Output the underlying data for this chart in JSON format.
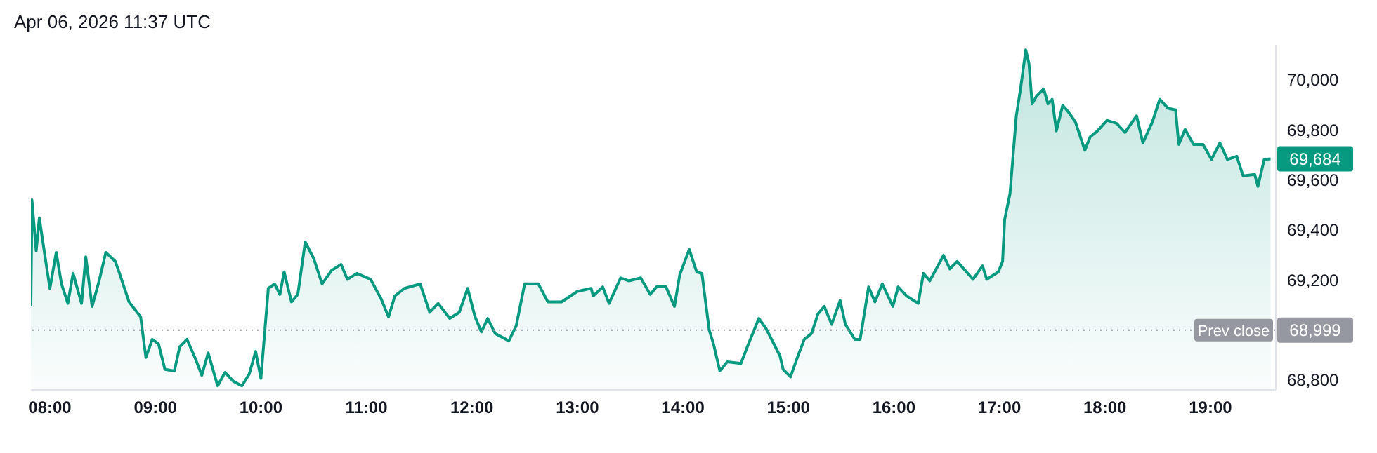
{
  "chart_data": {
    "type": "area",
    "annotations": [
      "Apr 06, 2026 11:37 UTC",
      {
        "text": "69,684",
        "x": 19.57,
        "y": 69684
      },
      {
        "text": "68,999",
        "x": 19.57,
        "y": 68999
      }
    ],
    "x": [
      7.82,
      7.83,
      7.87,
      7.9,
      7.95,
      8.0,
      8.06,
      8.11,
      8.17,
      8.22,
      8.3,
      8.34,
      8.4,
      8.47,
      8.53,
      8.62,
      8.66,
      8.75,
      8.86,
      8.91,
      8.97,
      9.03,
      9.09,
      9.18,
      9.23,
      9.3,
      9.38,
      9.44,
      9.5,
      9.59,
      9.66,
      9.74,
      9.82,
      9.89,
      9.95,
      10.0,
      10.07,
      10.13,
      10.18,
      10.22,
      10.29,
      10.35,
      10.42,
      10.5,
      10.58,
      10.67,
      10.76,
      10.82,
      10.91,
      11.04,
      11.14,
      11.21,
      11.27,
      11.36,
      11.51,
      11.6,
      11.68,
      11.79,
      11.88,
      11.96,
      12.03,
      12.09,
      12.15,
      12.22,
      12.35,
      12.42,
      12.5,
      12.63,
      12.72,
      12.85,
      13.0,
      13.13,
      13.15,
      13.24,
      13.3,
      13.41,
      13.49,
      13.6,
      13.69,
      13.75,
      13.84,
      13.92,
      13.97,
      14.06,
      14.13,
      14.18,
      14.25,
      14.29,
      14.35,
      14.42,
      14.55,
      14.61,
      14.72,
      14.79,
      14.92,
      14.95,
      15.02,
      15.08,
      15.15,
      15.22,
      15.28,
      15.34,
      15.41,
      15.49,
      15.54,
      15.63,
      15.68,
      15.76,
      15.82,
      15.89,
      15.99,
      16.04,
      16.12,
      16.23,
      16.28,
      16.34,
      16.47,
      16.53,
      16.6,
      16.75,
      16.84,
      16.88,
      16.99,
      17.03,
      17.05,
      17.1,
      17.16,
      17.2,
      17.25,
      17.28,
      17.31,
      17.35,
      17.42,
      17.46,
      17.5,
      17.54,
      17.6,
      17.65,
      17.72,
      17.81,
      17.86,
      17.93,
      18.02,
      18.11,
      18.19,
      18.3,
      18.36,
      18.45,
      18.52,
      18.6,
      18.67,
      18.7,
      18.76,
      18.84,
      18.93,
      19.01,
      19.09,
      19.16,
      19.25,
      19.31,
      19.42,
      19.45,
      19.51,
      19.57
    ],
    "series": [
      {
        "color": "#089981",
        "values": [
          69094,
          69520,
          69316,
          69448,
          69304,
          69166,
          69310,
          69184,
          69106,
          69226,
          69106,
          69292,
          69094,
          69202,
          69310,
          69274,
          69226,
          69112,
          69052,
          68890,
          68962,
          68944,
          68842,
          68836,
          68932,
          68962,
          68884,
          68818,
          68908,
          68776,
          68830,
          68794,
          68776,
          68824,
          68914,
          68806,
          69166,
          69184,
          69142,
          69232,
          69112,
          69142,
          69352,
          69286,
          69184,
          69238,
          69262,
          69202,
          69226,
          69202,
          69124,
          69052,
          69136,
          69166,
          69184,
          69070,
          69106,
          69046,
          69070,
          69166,
          69052,
          68992,
          69046,
          68986,
          68956,
          69016,
          69184,
          69184,
          69112,
          69112,
          69154,
          69166,
          69136,
          69172,
          69106,
          69208,
          69196,
          69208,
          69142,
          69172,
          69172,
          69094,
          69220,
          69322,
          69232,
          69226,
          68998,
          68944,
          68836,
          68872,
          68866,
          68932,
          69046,
          69004,
          68896,
          68842,
          68812,
          68884,
          68962,
          68986,
          69064,
          69094,
          69022,
          69118,
          69022,
          68962,
          68962,
          69172,
          69112,
          69184,
          69094,
          69172,
          69136,
          69106,
          69226,
          69196,
          69298,
          69244,
          69274,
          69202,
          69256,
          69202,
          69232,
          69274,
          69442,
          69544,
          69856,
          69964,
          70120,
          70066,
          69904,
          69934,
          69964,
          69904,
          69922,
          69796,
          69898,
          69874,
          69832,
          69718,
          69772,
          69796,
          69838,
          69826,
          69790,
          69856,
          69748,
          69832,
          69922,
          69886,
          69880,
          69742,
          69802,
          69742,
          69742,
          69682,
          69748,
          69682,
          69694,
          69616,
          69622,
          69574,
          69682,
          69684
        ]
      }
    ],
    "xlim": [
      7.82,
      19.62
    ],
    "ylim": [
      68760,
      70140
    ],
    "xticks": [
      {
        "value": 8,
        "label": "08:00"
      },
      {
        "value": 9,
        "label": "09:00"
      },
      {
        "value": 10,
        "label": "10:00"
      },
      {
        "value": 11,
        "label": "11:00"
      },
      {
        "value": 12,
        "label": "12:00"
      },
      {
        "value": 13,
        "label": "13:00"
      },
      {
        "value": 14,
        "label": "14:00"
      },
      {
        "value": 15,
        "label": "15:00"
      },
      {
        "value": 16,
        "label": "16:00"
      },
      {
        "value": 17,
        "label": "17:00"
      },
      {
        "value": 18,
        "label": "18:00"
      },
      {
        "value": 19,
        "label": "19:00"
      }
    ],
    "yticks": [
      {
        "value": 68800,
        "label": "68,800"
      },
      {
        "value": 69200,
        "label": "69,200"
      },
      {
        "value": 69400,
        "label": "69,400"
      },
      {
        "value": 69600,
        "label": "69,600"
      },
      {
        "value": 69800,
        "label": "69,800"
      },
      {
        "value": 70000,
        "label": "70,000"
      }
    ],
    "ref_lines": [
      {
        "axis": "y",
        "value": 68999,
        "label": "Prev close",
        "color": "#9598a1",
        "line_style": "dotted"
      }
    ],
    "grid": false,
    "legend": false,
    "marker": "none",
    "line_style": "solid"
  }
}
